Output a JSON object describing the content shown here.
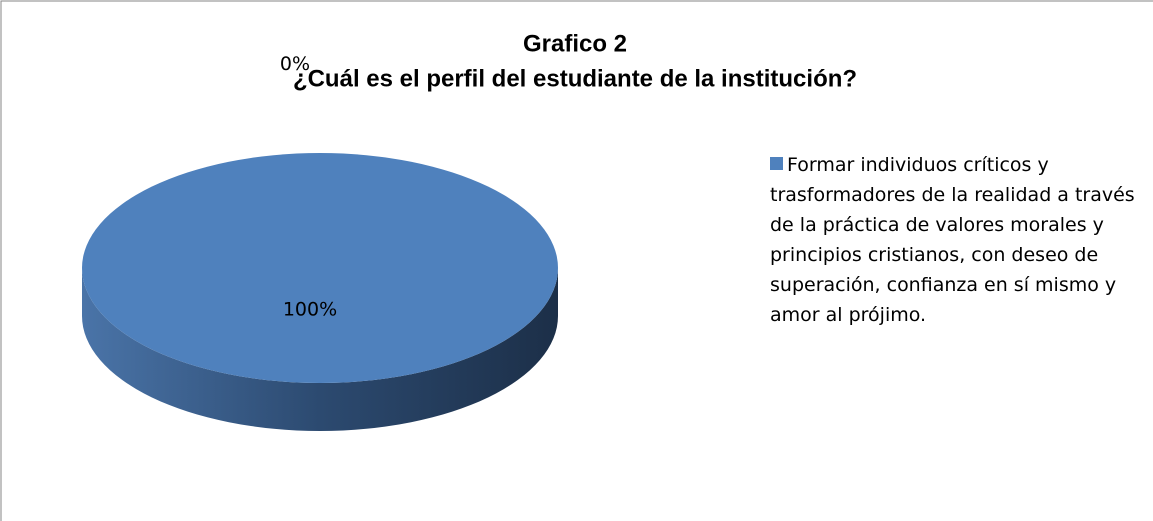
{
  "chart_data": {
    "type": "pie",
    "title": "Grafico 2",
    "subtitle": "¿Cuál es el perfil del estudiante de la institución?",
    "categories": [
      "Formar individuos críticos y trasformadores de la realidad a través de la práctica de valores morales y principios cristianos, con deseo de superación, confianza en sí mismo y amor al prójimo.",
      null
    ],
    "values": [
      100,
      0
    ],
    "value_labels": [
      "100%",
      "0%"
    ],
    "colors": [
      "#4f81bd",
      "#c0504d"
    ],
    "legend": "right"
  }
}
